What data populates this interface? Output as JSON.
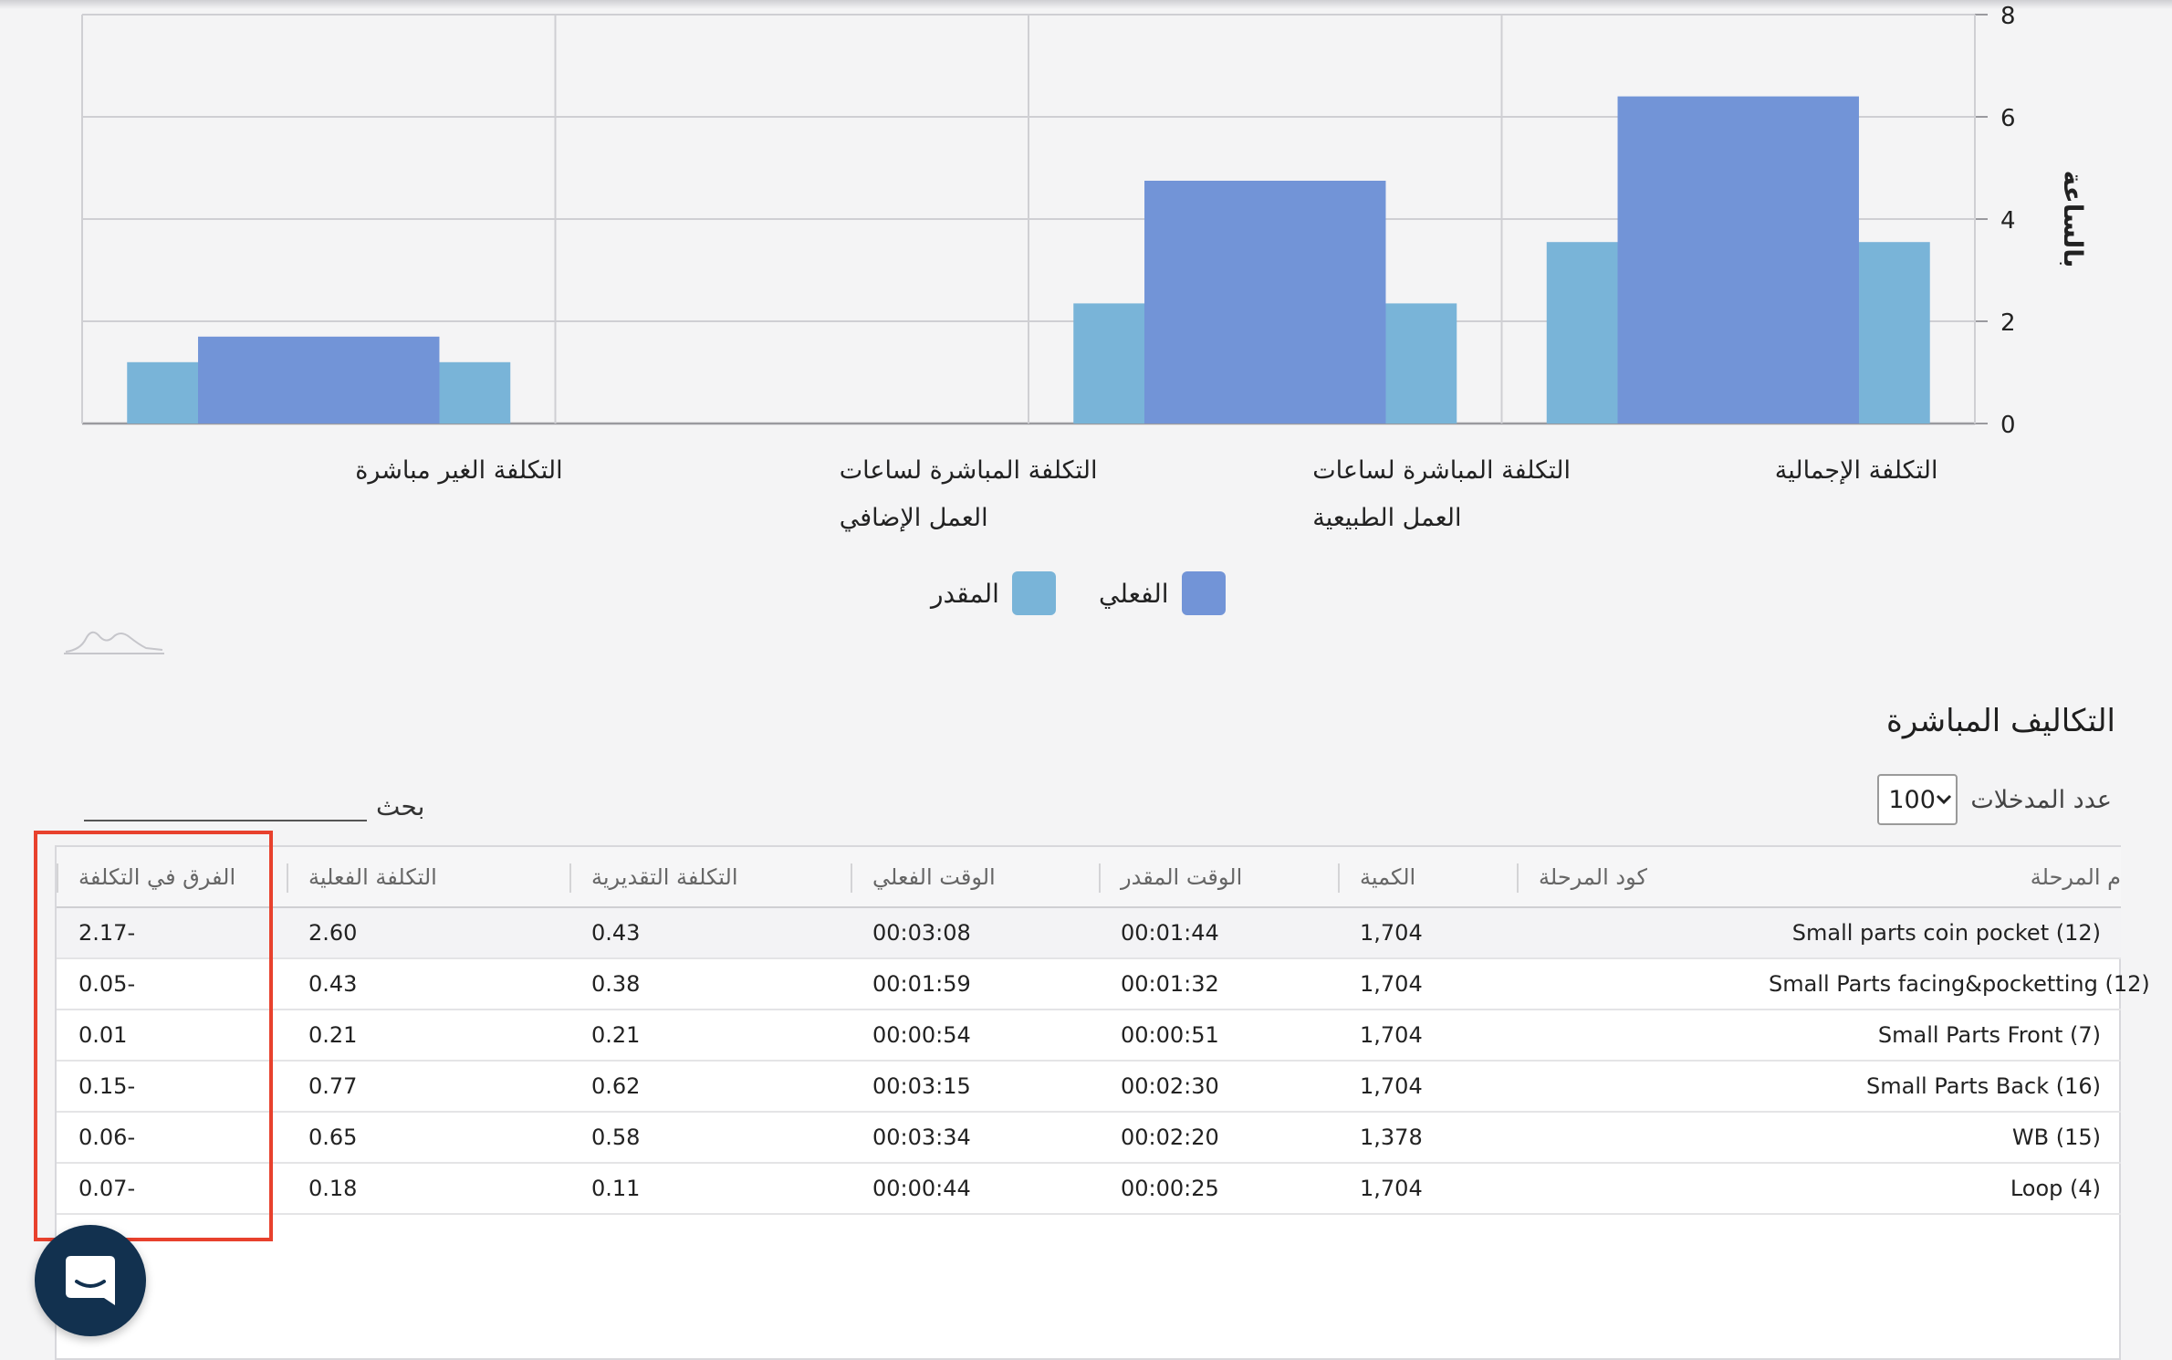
{
  "chart_data": {
    "type": "bar",
    "categories": [
      "التكلفة الإجمالية",
      "التكلفة المباشرة لساعات العمل الطبيعية",
      "التكلفة المباشرة لساعات العمل الإضافي",
      "التكلفة الغير مباشرة"
    ],
    "category_lines": [
      [
        "التكلفة الإجمالية"
      ],
      [
        "التكلفة المباشرة لساعات",
        "العمل الطبيعية"
      ],
      [
        "التكلفة المباشرة لساعات",
        "العمل الإضافي"
      ],
      [
        "التكلفة الغير مباشرة"
      ]
    ],
    "series": [
      {
        "name": "الفعلي",
        "color": "#7294d7",
        "values": [
          6.4,
          4.75,
          0,
          1.7
        ]
      },
      {
        "name": "المقدر",
        "color": "#79b4d8",
        "values": [
          3.55,
          2.35,
          0,
          1.2
        ]
      }
    ],
    "ylabel": "بالساعة",
    "ylim": [
      0,
      8
    ],
    "yticks": [
      "0",
      "2",
      "4",
      "6",
      "8"
    ],
    "grid": true,
    "legend_position": "bottom"
  },
  "legend": {
    "actual": {
      "label": "الفعلي",
      "color": "#7294d7"
    },
    "estimated": {
      "label": "المقدر",
      "color": "#79b4d8"
    }
  },
  "section": {
    "title": "التكاليف المباشرة"
  },
  "entries": {
    "label": "عدد المدخلات",
    "value": "100"
  },
  "search": {
    "label": "بحث"
  },
  "table": {
    "headers": {
      "stage": "م المرحلة",
      "stage_code": "كود المرحلة",
      "quantity": "الكمية",
      "estimated_time": "الوقت المقدر",
      "actual_time": "الوقت الفعلي",
      "estimated_cost": "التكلفة التقديرية",
      "actual_cost": "التكلفة الفعلية",
      "cost_difference": "الفرق في التكلفة"
    },
    "rows": [
      {
        "stage": "Small parts coin pocket (12)",
        "stage_code": "",
        "quantity": "1,704",
        "estimated_time": "00:01:44",
        "actual_time": "00:03:08",
        "estimated_cost": "0.43",
        "actual_cost": "2.60",
        "cost_difference": "-2.17"
      },
      {
        "stage": "Small Parts facing&pocketting (12)",
        "stage_code": "",
        "quantity": "1,704",
        "estimated_time": "00:01:32",
        "actual_time": "00:01:59",
        "estimated_cost": "0.38",
        "actual_cost": "0.43",
        "cost_difference": "-0.05"
      },
      {
        "stage": "Small Parts Front (7)",
        "stage_code": "",
        "quantity": "1,704",
        "estimated_time": "00:00:51",
        "actual_time": "00:00:54",
        "estimated_cost": "0.21",
        "actual_cost": "0.21",
        "cost_difference": "0.01"
      },
      {
        "stage": "Small Parts Back (16)",
        "stage_code": "",
        "quantity": "1,704",
        "estimated_time": "00:02:30",
        "actual_time": "00:03:15",
        "estimated_cost": "0.62",
        "actual_cost": "0.77",
        "cost_difference": "-0.15"
      },
      {
        "stage": "WB (15)",
        "stage_code": "",
        "quantity": "1,378",
        "estimated_time": "00:02:20",
        "actual_time": "00:03:34",
        "estimated_cost": "0.58",
        "actual_cost": "0.65",
        "cost_difference": "-0.06"
      },
      {
        "stage": "Loop (4)",
        "stage_code": "",
        "quantity": "1,704",
        "estimated_time": "00:00:25",
        "actual_time": "00:00:44",
        "estimated_cost": "0.11",
        "actual_cost": "0.18",
        "cost_difference": "-0.07"
      }
    ]
  },
  "annotation": {
    "color": "#e8412d"
  },
  "chat": {
    "icon": "chat-bubble-icon",
    "color": "#12314f"
  }
}
